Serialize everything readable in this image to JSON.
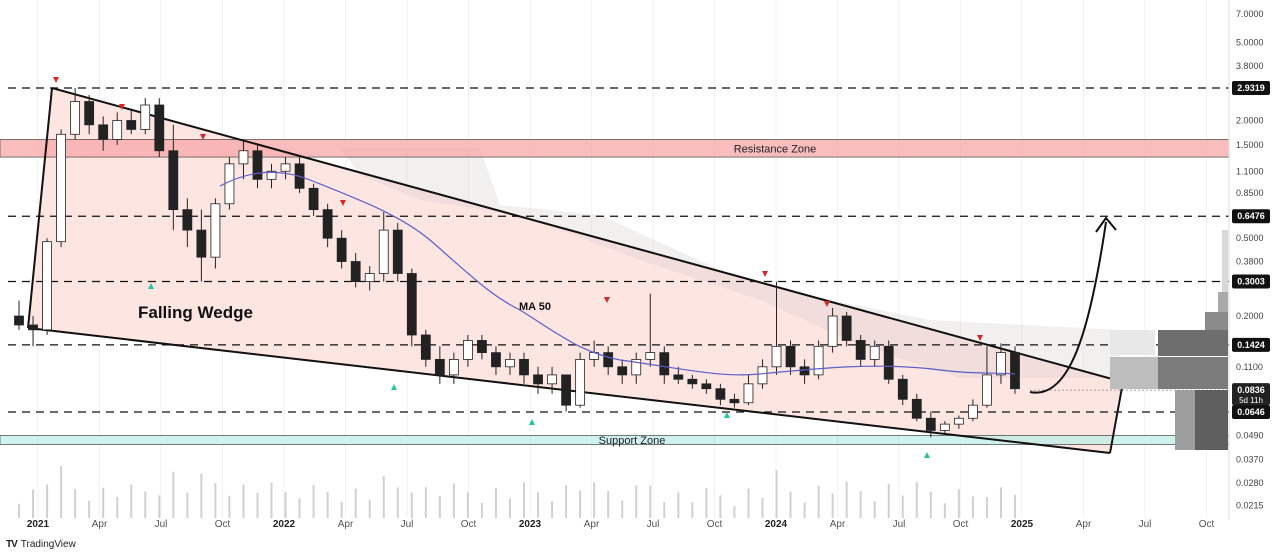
{
  "chart_data": {
    "type": "candlestick",
    "y_scale": "log",
    "y_ticks": [
      "7.0000",
      "5.0000",
      "3.8000",
      "2.0000",
      "1.5000",
      "1.1000",
      "0.8500",
      "0.5000",
      "0.3800",
      "0.2000",
      "0.1100",
      "0.0490",
      "0.0370",
      "0.0280",
      "0.0215"
    ],
    "x_ticks": [
      {
        "label": "2021",
        "year": true
      },
      {
        "label": "Apr",
        "year": false
      },
      {
        "label": "Jul",
        "year": false
      },
      {
        "label": "Oct",
        "year": false
      },
      {
        "label": "2022",
        "year": true
      },
      {
        "label": "Apr",
        "year": false
      },
      {
        "label": "Jul",
        "year": false
      },
      {
        "label": "Oct",
        "year": false
      },
      {
        "label": "2023",
        "year": true
      },
      {
        "label": "Apr",
        "year": false
      },
      {
        "label": "Jul",
        "year": false
      },
      {
        "label": "Oct",
        "year": false
      },
      {
        "label": "2024",
        "year": true
      },
      {
        "label": "Apr",
        "year": false
      },
      {
        "label": "Jul",
        "year": false
      },
      {
        "label": "Oct",
        "year": false
      },
      {
        "label": "2025",
        "year": true
      },
      {
        "label": "Apr",
        "year": false
      },
      {
        "label": "Jul",
        "year": false
      },
      {
        "label": "Oct",
        "year": false
      }
    ],
    "price_levels": [
      {
        "label": "2.9319",
        "value": 2.9319,
        "style": "dark"
      },
      {
        "label": "0.6476",
        "value": 0.6476,
        "style": "dark"
      },
      {
        "label": "0.3003",
        "value": 0.3003,
        "style": "dark"
      },
      {
        "label": "0.1424",
        "value": 0.1424,
        "style": "dark"
      },
      {
        "label": "0.0646",
        "value": 0.0646,
        "style": "dark"
      }
    ],
    "current_price": {
      "label": "0.0836",
      "countdown": "5d 11h",
      "value": 0.0836
    },
    "zones": [
      {
        "label": "Resistance Zone",
        "low": 1.3,
        "high": 1.6,
        "color": "#f7a8a8"
      },
      {
        "label": "Support Zone",
        "low": 0.044,
        "high": 0.049,
        "color": "#bfeee6"
      }
    ],
    "annotations": {
      "pattern": "Falling Wedge",
      "moving_average": "MA 50"
    },
    "colors": {
      "up": "#ffffff",
      "down": "#222222",
      "wedge_fill": "#fde0dd",
      "ma": "#5b5fc7",
      "top_marker": "#d62828",
      "bottom_marker": "#26c6a4"
    },
    "candles": [
      [
        0.2,
        0.24,
        0.17,
        0.18
      ],
      [
        0.18,
        0.2,
        0.14,
        0.17
      ],
      [
        0.17,
        0.5,
        0.16,
        0.48
      ],
      [
        0.48,
        1.8,
        0.45,
        1.7
      ],
      [
        1.7,
        2.93,
        1.6,
        2.5
      ],
      [
        2.5,
        2.7,
        1.7,
        1.9
      ],
      [
        1.9,
        2.1,
        1.4,
        1.6
      ],
      [
        1.6,
        2.2,
        1.5,
        2.0
      ],
      [
        2.0,
        2.3,
        1.7,
        1.8
      ],
      [
        1.8,
        2.6,
        1.7,
        2.4
      ],
      [
        2.4,
        2.6,
        1.3,
        1.4
      ],
      [
        1.4,
        1.9,
        0.55,
        0.7
      ],
      [
        0.7,
        0.8,
        0.45,
        0.55
      ],
      [
        0.55,
        0.7,
        0.3,
        0.4
      ],
      [
        0.4,
        0.8,
        0.35,
        0.75
      ],
      [
        0.75,
        1.3,
        0.7,
        1.2
      ],
      [
        1.2,
        1.6,
        1.0,
        1.4
      ],
      [
        1.4,
        1.5,
        0.9,
        1.0
      ],
      [
        1.0,
        1.2,
        0.9,
        1.1
      ],
      [
        1.1,
        1.3,
        1.0,
        1.2
      ],
      [
        1.2,
        1.3,
        0.85,
        0.9
      ],
      [
        0.9,
        0.95,
        0.65,
        0.7
      ],
      [
        0.7,
        0.75,
        0.45,
        0.5
      ],
      [
        0.5,
        0.55,
        0.35,
        0.38
      ],
      [
        0.38,
        0.42,
        0.28,
        0.3
      ],
      [
        0.3,
        0.36,
        0.27,
        0.33
      ],
      [
        0.33,
        0.68,
        0.3,
        0.55
      ],
      [
        0.55,
        0.6,
        0.3,
        0.33
      ],
      [
        0.33,
        0.35,
        0.14,
        0.16
      ],
      [
        0.16,
        0.17,
        0.11,
        0.12
      ],
      [
        0.12,
        0.14,
        0.09,
        0.1
      ],
      [
        0.1,
        0.13,
        0.09,
        0.12
      ],
      [
        0.12,
        0.16,
        0.11,
        0.15
      ],
      [
        0.15,
        0.16,
        0.12,
        0.13
      ],
      [
        0.13,
        0.14,
        0.1,
        0.11
      ],
      [
        0.11,
        0.13,
        0.1,
        0.12
      ],
      [
        0.12,
        0.13,
        0.09,
        0.1
      ],
      [
        0.1,
        0.11,
        0.08,
        0.09
      ],
      [
        0.09,
        0.11,
        0.08,
        0.1
      ],
      [
        0.1,
        0.1,
        0.065,
        0.07
      ],
      [
        0.07,
        0.13,
        0.068,
        0.12
      ],
      [
        0.12,
        0.15,
        0.11,
        0.13
      ],
      [
        0.13,
        0.14,
        0.1,
        0.11
      ],
      [
        0.11,
        0.12,
        0.09,
        0.1
      ],
      [
        0.1,
        0.13,
        0.09,
        0.12
      ],
      [
        0.12,
        0.26,
        0.11,
        0.13
      ],
      [
        0.13,
        0.14,
        0.09,
        0.1
      ],
      [
        0.1,
        0.11,
        0.09,
        0.095
      ],
      [
        0.095,
        0.1,
        0.085,
        0.09
      ],
      [
        0.09,
        0.095,
        0.08,
        0.085
      ],
      [
        0.085,
        0.09,
        0.07,
        0.075
      ],
      [
        0.075,
        0.08,
        0.068,
        0.072
      ],
      [
        0.072,
        0.1,
        0.07,
        0.09
      ],
      [
        0.09,
        0.12,
        0.085,
        0.11
      ],
      [
        0.11,
        0.3,
        0.1,
        0.14
      ],
      [
        0.14,
        0.15,
        0.1,
        0.11
      ],
      [
        0.11,
        0.12,
        0.09,
        0.1
      ],
      [
        0.1,
        0.15,
        0.095,
        0.14
      ],
      [
        0.14,
        0.22,
        0.13,
        0.2
      ],
      [
        0.2,
        0.21,
        0.14,
        0.15
      ],
      [
        0.15,
        0.16,
        0.11,
        0.12
      ],
      [
        0.12,
        0.15,
        0.11,
        0.14
      ],
      [
        0.14,
        0.15,
        0.09,
        0.095
      ],
      [
        0.095,
        0.1,
        0.07,
        0.075
      ],
      [
        0.075,
        0.08,
        0.058,
        0.06
      ],
      [
        0.06,
        0.065,
        0.048,
        0.052
      ],
      [
        0.052,
        0.058,
        0.05,
        0.056
      ],
      [
        0.056,
        0.062,
        0.053,
        0.06
      ],
      [
        0.06,
        0.075,
        0.058,
        0.07
      ],
      [
        0.07,
        0.14,
        0.068,
        0.1
      ],
      [
        0.1,
        0.145,
        0.09,
        0.13
      ],
      [
        0.13,
        0.14,
        0.08,
        0.085
      ]
    ]
  },
  "footer": {
    "brand": "TradingView"
  }
}
